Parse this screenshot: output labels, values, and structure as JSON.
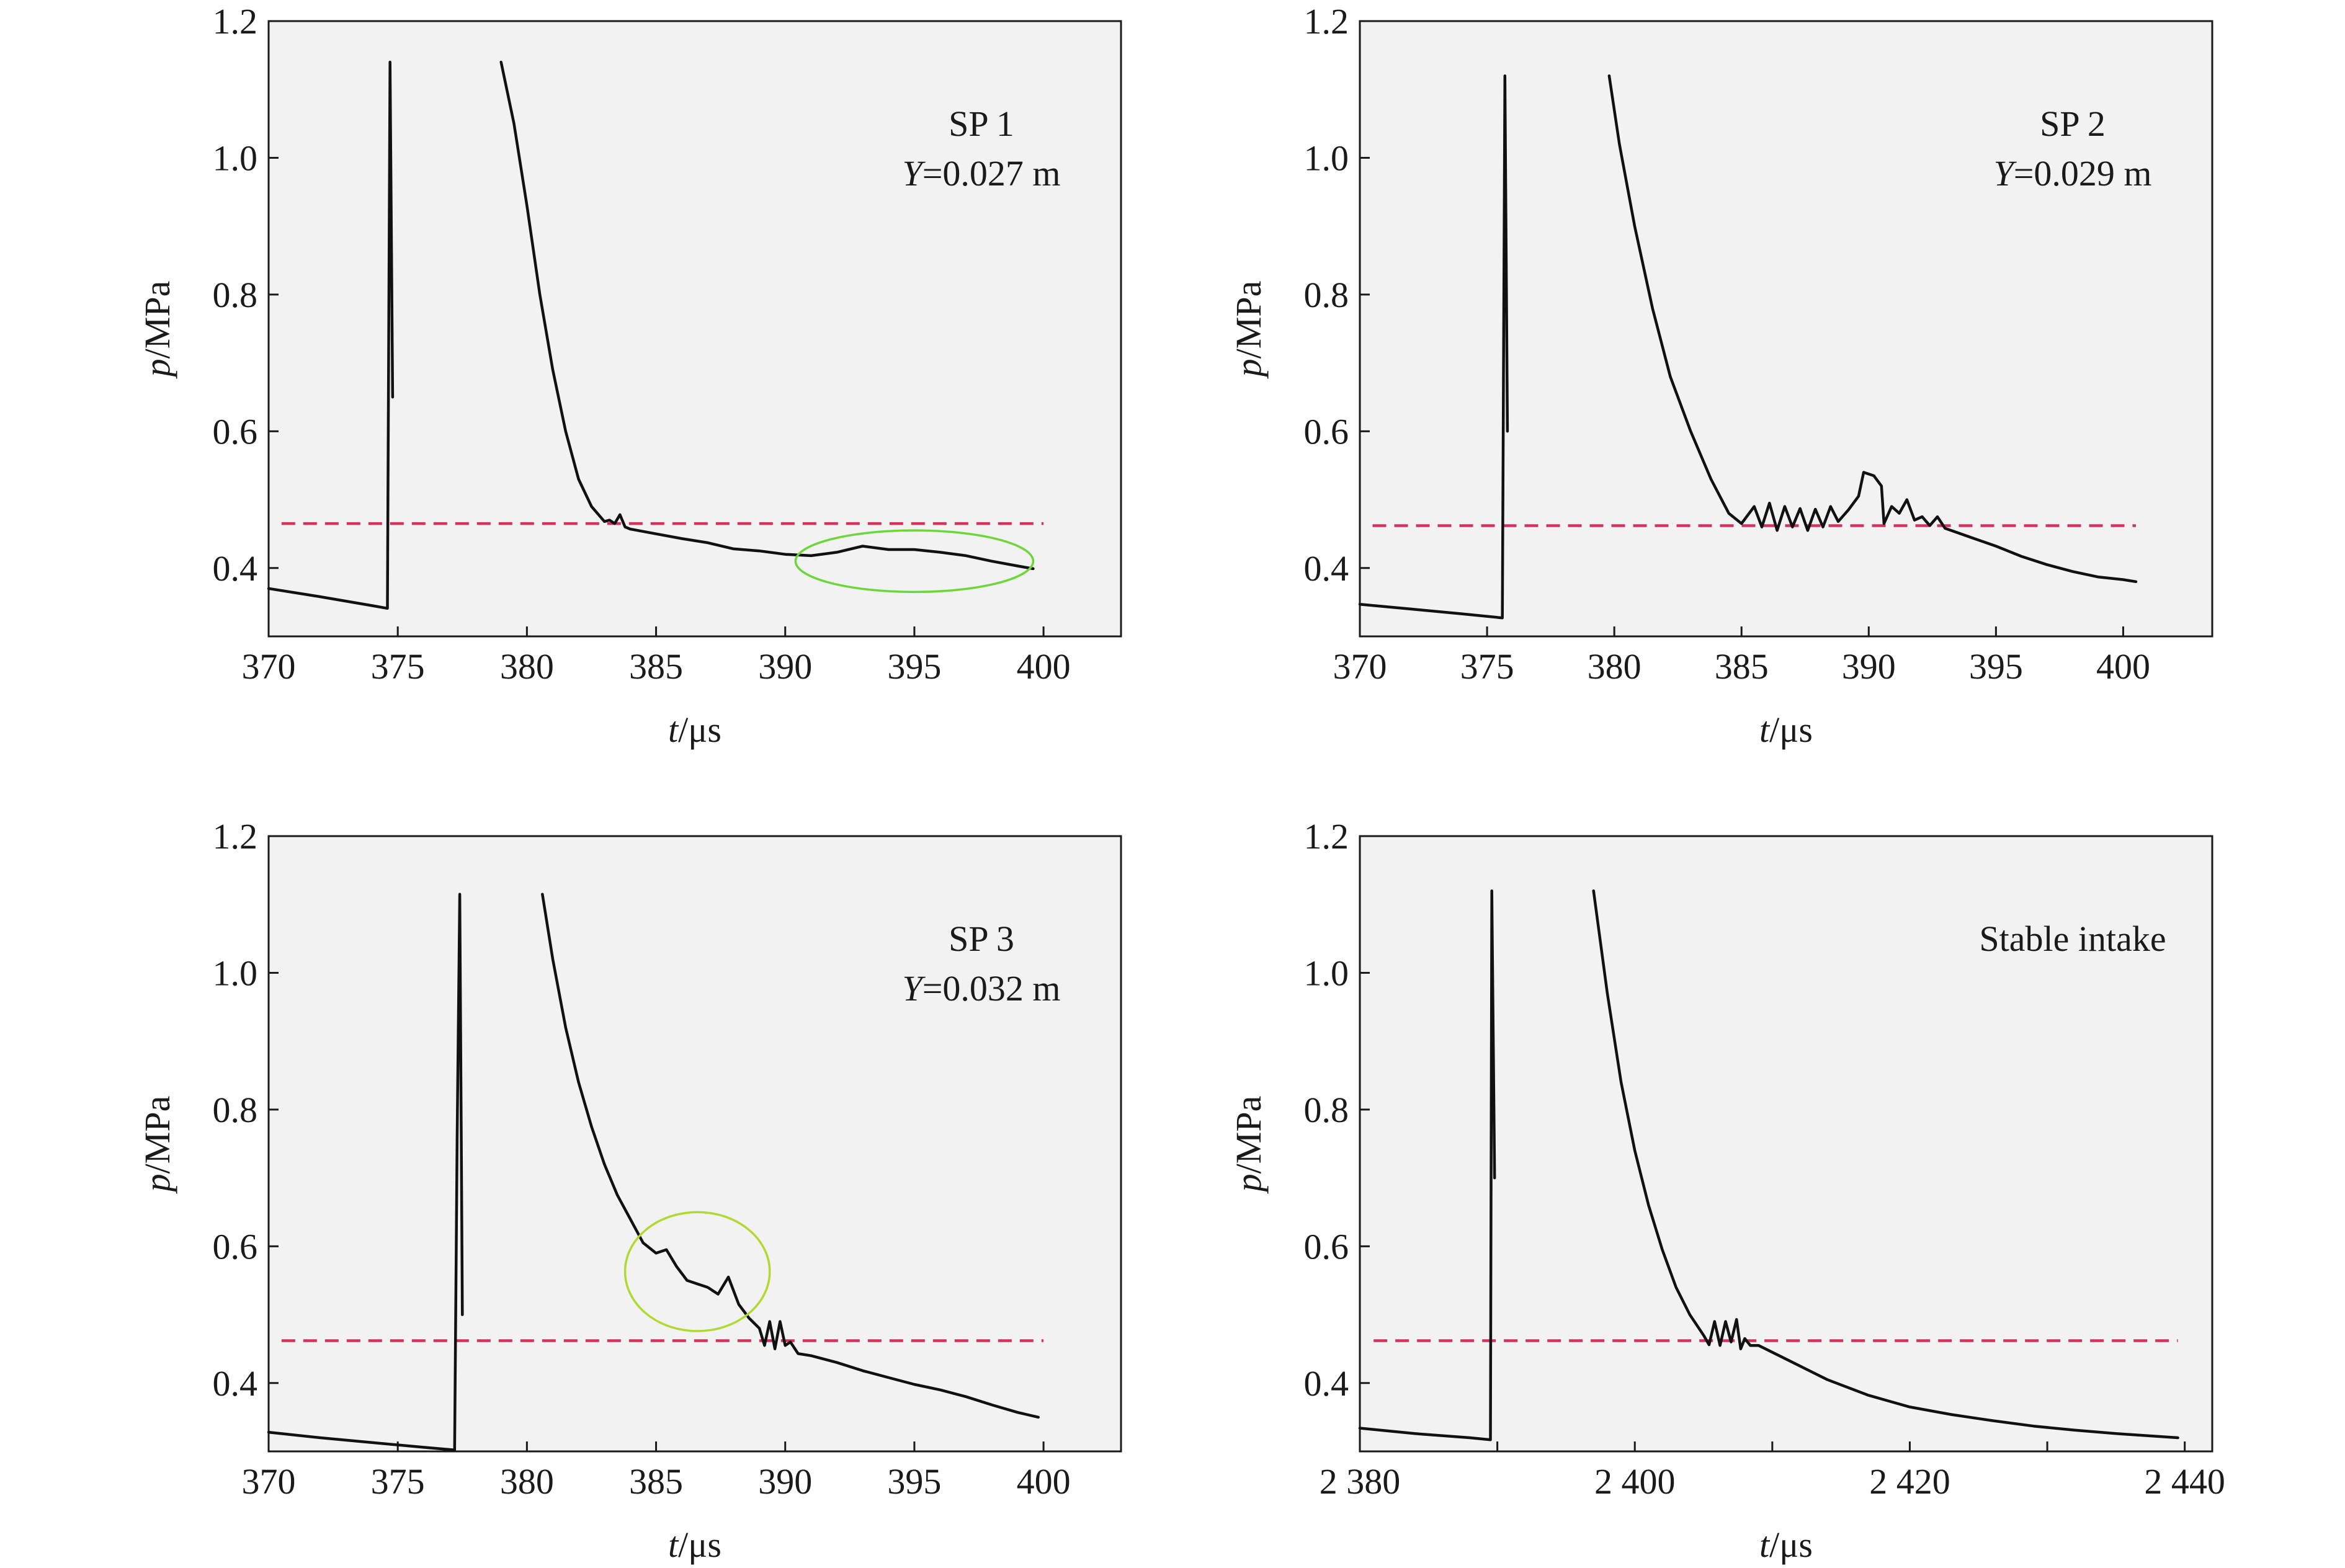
{
  "chart_data": [
    {
      "type": "line",
      "annotation": [
        "SP 1",
        "Y=0.027 m"
      ],
      "annotation_parts": {
        "title": "SP 1",
        "var": "Y",
        "value": "=0.027 m"
      },
      "xlabel": {
        "var": "t",
        "unit": "/μs"
      },
      "ylabel": {
        "var": "p",
        "unit": "/MPa"
      },
      "xlim": [
        370,
        403
      ],
      "ylim": [
        0.3,
        1.2
      ],
      "xticks": [
        370,
        375,
        380,
        385,
        390,
        395,
        400
      ],
      "xtick_labels": [
        "370",
        "375",
        "380",
        "385",
        "390",
        "395",
        "400"
      ],
      "yticks": [
        0.4,
        0.6,
        0.8,
        1.0,
        1.2
      ],
      "ytick_labels": [
        "0.4",
        "0.6",
        "0.8",
        "1.0",
        "1.2"
      ],
      "series": [
        {
          "segments": [
            [
              [
                370,
                0.37
              ],
              [
                372,
                0.358
              ],
              [
                374,
                0.345
              ],
              [
                374.6,
                0.341
              ],
              [
                374.7,
                1.14
              ],
              [
                374.8,
                0.65
              ]
            ],
            [
              [
                379.0,
                1.14
              ],
              [
                379.5,
                1.05
              ],
              [
                380,
                0.93
              ],
              [
                380.5,
                0.8
              ],
              [
                381,
                0.69
              ],
              [
                381.5,
                0.6
              ],
              [
                382,
                0.53
              ],
              [
                382.5,
                0.49
              ],
              [
                383,
                0.468
              ],
              [
                383.2,
                0.47
              ],
              [
                383.4,
                0.465
              ],
              [
                383.6,
                0.478
              ],
              [
                383.8,
                0.46
              ],
              [
                384,
                0.457
              ],
              [
                385,
                0.45
              ],
              [
                386,
                0.443
              ],
              [
                387,
                0.437
              ],
              [
                388,
                0.428
              ],
              [
                389,
                0.425
              ],
              [
                390,
                0.42
              ],
              [
                391,
                0.418
              ],
              [
                392,
                0.423
              ],
              [
                393,
                0.432
              ],
              [
                394,
                0.427
              ],
              [
                395,
                0.427
              ],
              [
                396,
                0.423
              ],
              [
                397,
                0.418
              ],
              [
                398,
                0.41
              ],
              [
                399,
                0.403
              ],
              [
                399.6,
                0.399
              ]
            ]
          ]
        }
      ],
      "reference_line": {
        "y": 0.465,
        "x_range": [
          370.5,
          400
        ]
      },
      "highlight": {
        "cx": 395,
        "cy": 0.41,
        "rx_data": 4.6,
        "ry_data": 0.045,
        "color": "#6dd63a"
      },
      "colors": {
        "series": "#111111",
        "reference": "#d6315b"
      }
    },
    {
      "type": "line",
      "annotation": [
        "SP 2",
        "Y=0.029 m"
      ],
      "annotation_parts": {
        "title": "SP 2",
        "var": "Y",
        "value": "=0.029 m"
      },
      "xlabel": {
        "var": "t",
        "unit": "/μs"
      },
      "ylabel": {
        "var": "p",
        "unit": "/MPa"
      },
      "xlim": [
        370,
        403.5
      ],
      "ylim": [
        0.3,
        1.2
      ],
      "xticks": [
        370,
        375,
        380,
        385,
        390,
        395,
        400
      ],
      "xtick_labels": [
        "370",
        "375",
        "380",
        "385",
        "390",
        "395",
        "400"
      ],
      "yticks": [
        0.4,
        0.6,
        0.8,
        1.0,
        1.2
      ],
      "ytick_labels": [
        "0.4",
        "0.6",
        "0.8",
        "1.0",
        "1.2"
      ],
      "series": [
        {
          "segments": [
            [
              [
                370,
                0.347
              ],
              [
                372,
                0.34
              ],
              [
                374,
                0.333
              ],
              [
                375.6,
                0.327
              ],
              [
                375.7,
                1.12
              ],
              [
                375.8,
                0.6
              ]
            ],
            [
              [
                379.8,
                1.12
              ],
              [
                380.2,
                1.02
              ],
              [
                380.8,
                0.9
              ],
              [
                381.5,
                0.78
              ],
              [
                382.2,
                0.68
              ],
              [
                383,
                0.6
              ],
              [
                383.8,
                0.53
              ],
              [
                384.5,
                0.48
              ],
              [
                385,
                0.465
              ],
              [
                385.5,
                0.49
              ],
              [
                385.8,
                0.46
              ],
              [
                386.1,
                0.495
              ],
              [
                386.4,
                0.455
              ],
              [
                386.7,
                0.49
              ],
              [
                387,
                0.46
              ],
              [
                387.3,
                0.487
              ],
              [
                387.6,
                0.455
              ],
              [
                387.9,
                0.486
              ],
              [
                388.2,
                0.46
              ],
              [
                388.5,
                0.49
              ],
              [
                388.8,
                0.468
              ],
              [
                389.2,
                0.485
              ],
              [
                389.6,
                0.505
              ],
              [
                389.8,
                0.54
              ],
              [
                390.2,
                0.535
              ],
              [
                390.5,
                0.52
              ],
              [
                390.6,
                0.465
              ],
              [
                390.9,
                0.49
              ],
              [
                391.2,
                0.48
              ],
              [
                391.5,
                0.5
              ],
              [
                391.8,
                0.47
              ],
              [
                392.1,
                0.475
              ],
              [
                392.4,
                0.462
              ],
              [
                392.7,
                0.475
              ],
              [
                393,
                0.458
              ],
              [
                394,
                0.445
              ],
              [
                395,
                0.432
              ],
              [
                396,
                0.417
              ],
              [
                397,
                0.405
              ],
              [
                398,
                0.395
              ],
              [
                399,
                0.387
              ],
              [
                400,
                0.383
              ],
              [
                400.5,
                0.38
              ]
            ]
          ]
        }
      ],
      "reference_line": {
        "y": 0.462,
        "x_range": [
          370.5,
          400.5
        ]
      },
      "colors": {
        "series": "#111111",
        "reference": "#d6315b"
      }
    },
    {
      "type": "line",
      "annotation": [
        "SP 3",
        "Y=0.032 m"
      ],
      "annotation_parts": {
        "title": "SP 3",
        "var": "Y",
        "value": "=0.032 m"
      },
      "xlabel": {
        "var": "t",
        "unit": "/μs"
      },
      "ylabel": {
        "var": "p",
        "unit": "/MPa"
      },
      "xlim": [
        370,
        403
      ],
      "ylim": [
        0.3,
        1.2
      ],
      "xticks": [
        370,
        375,
        380,
        385,
        390,
        395,
        400
      ],
      "xtick_labels": [
        "370",
        "375",
        "380",
        "385",
        "390",
        "395",
        "400"
      ],
      "yticks": [
        0.4,
        0.6,
        0.8,
        1.0,
        1.2
      ],
      "ytick_labels": [
        "0.4",
        "0.6",
        "0.8",
        "1.0",
        "1.2"
      ],
      "series": [
        {
          "segments": [
            [
              [
                370,
                0.328
              ],
              [
                372,
                0.32
              ],
              [
                374,
                0.313
              ],
              [
                376,
                0.306
              ],
              [
                377.2,
                0.302
              ],
              [
                377.3,
                0.76
              ],
              [
                377.4,
                1.115
              ],
              [
                377.5,
                0.5
              ]
            ],
            [
              [
                380.6,
                1.115
              ],
              [
                381,
                1.02
              ],
              [
                381.5,
                0.92
              ],
              [
                382,
                0.84
              ],
              [
                382.5,
                0.775
              ],
              [
                383,
                0.72
              ],
              [
                383.5,
                0.675
              ],
              [
                384,
                0.64
              ],
              [
                384.5,
                0.605
              ],
              [
                385,
                0.59
              ],
              [
                385.4,
                0.595
              ],
              [
                385.8,
                0.57
              ],
              [
                386.2,
                0.55
              ],
              [
                386.6,
                0.545
              ],
              [
                387,
                0.54
              ],
              [
                387.4,
                0.53
              ],
              [
                387.8,
                0.555
              ],
              [
                388.2,
                0.515
              ],
              [
                388.6,
                0.495
              ],
              [
                389,
                0.48
              ],
              [
                389.2,
                0.455
              ],
              [
                389.4,
                0.49
              ],
              [
                389.6,
                0.45
              ],
              [
                389.8,
                0.49
              ],
              [
                390,
                0.455
              ],
              [
                390.2,
                0.46
              ],
              [
                390.5,
                0.443
              ],
              [
                391,
                0.44
              ],
              [
                392,
                0.43
              ],
              [
                393,
                0.418
              ],
              [
                394,
                0.408
              ],
              [
                395,
                0.398
              ],
              [
                396,
                0.39
              ],
              [
                397,
                0.38
              ],
              [
                398,
                0.368
              ],
              [
                399,
                0.357
              ],
              [
                399.8,
                0.35
              ]
            ]
          ]
        }
      ],
      "reference_line": {
        "y": 0.462,
        "x_range": [
          370.5,
          400
        ]
      },
      "highlight": {
        "cx": 386.6,
        "cy": 0.563,
        "rx_data": 2.8,
        "ry_data": 0.087,
        "color": "#b2d832"
      },
      "colors": {
        "series": "#111111",
        "reference": "#d6315b"
      }
    },
    {
      "type": "line",
      "annotation": [
        "Stable intake"
      ],
      "annotation_parts": {
        "title": "Stable intake"
      },
      "xlabel": {
        "var": "t",
        "unit": "/μs"
      },
      "ylabel": {
        "var": "p",
        "unit": "/MPa"
      },
      "xlim": [
        2380,
        2442
      ],
      "ylim": [
        0.3,
        1.2
      ],
      "xticks": [
        2380,
        2400,
        2420,
        2440
      ],
      "xtick_labels": [
        "2 380",
        "2 400",
        "2 420",
        "2 440"
      ],
      "minor_xticks": [
        2390,
        2410,
        2430
      ],
      "yticks": [
        0.4,
        0.6,
        0.8,
        1.0,
        1.2
      ],
      "ytick_labels": [
        "0.4",
        "0.6",
        "0.8",
        "1.0",
        "1.2"
      ],
      "series": [
        {
          "segments": [
            [
              [
                2380,
                0.334
              ],
              [
                2384,
                0.326
              ],
              [
                2388,
                0.32
              ],
              [
                2389.5,
                0.317
              ],
              [
                2389.6,
                1.12
              ],
              [
                2389.8,
                0.7
              ]
            ],
            [
              [
                2397,
                1.12
              ],
              [
                2398,
                0.97
              ],
              [
                2399,
                0.84
              ],
              [
                2400,
                0.74
              ],
              [
                2401,
                0.66
              ],
              [
                2402,
                0.595
              ],
              [
                2403,
                0.54
              ],
              [
                2404,
                0.5
              ],
              [
                2405,
                0.47
              ],
              [
                2405.4,
                0.456
              ],
              [
                2405.8,
                0.49
              ],
              [
                2406.2,
                0.455
              ],
              [
                2406.6,
                0.49
              ],
              [
                2407,
                0.46
              ],
              [
                2407.4,
                0.493
              ],
              [
                2407.7,
                0.45
              ],
              [
                2408,
                0.465
              ],
              [
                2408.4,
                0.455
              ],
              [
                2409,
                0.455
              ],
              [
                2411,
                0.435
              ],
              [
                2414,
                0.405
              ],
              [
                2417,
                0.382
              ],
              [
                2420,
                0.365
              ],
              [
                2423,
                0.354
              ],
              [
                2426,
                0.345
              ],
              [
                2429,
                0.337
              ],
              [
                2432,
                0.331
              ],
              [
                2435,
                0.326
              ],
              [
                2439.5,
                0.32
              ]
            ]
          ]
        }
      ],
      "reference_line": {
        "y": 0.462,
        "x_range": [
          2381,
          2439.5
        ]
      },
      "colors": {
        "series": "#111111",
        "reference": "#d6315b"
      }
    }
  ]
}
